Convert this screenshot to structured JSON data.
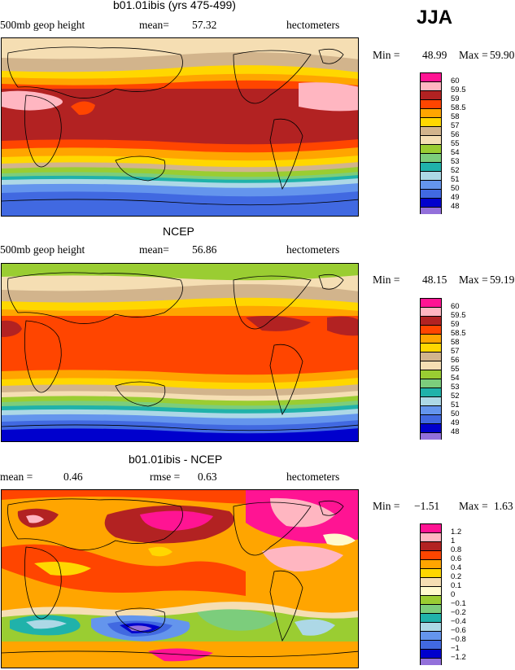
{
  "season": "JJA",
  "panels": [
    {
      "title": "b01.01ibis (yrs 475-499)",
      "left_label": "500mb geop height",
      "stat_label": "mean=",
      "stat_value": "57.32",
      "units": "hectometers",
      "min_label": "Min =",
      "min_value": "48.99",
      "max_label": "Max =",
      "max_value": "59.90",
      "legend": [
        {
          "label": "60",
          "color": "#ff1493"
        },
        {
          "label": "59.5",
          "color": "#ffb6c1"
        },
        {
          "label": "59",
          "color": "#b22222"
        },
        {
          "label": "58.5",
          "color": "#ff4500"
        },
        {
          "label": "58",
          "color": "#ffa500"
        },
        {
          "label": "57",
          "color": "#ffd700"
        },
        {
          "label": "56",
          "color": "#d2b48c"
        },
        {
          "label": "55",
          "color": "#f5deb3"
        },
        {
          "label": "54",
          "color": "#9acd32"
        },
        {
          "label": "53",
          "color": "#7ccd7c"
        },
        {
          "label": "52",
          "color": "#20b2aa"
        },
        {
          "label": "51",
          "color": "#add8e6"
        },
        {
          "label": "50",
          "color": "#6495ed"
        },
        {
          "label": "49",
          "color": "#4169e1"
        },
        {
          "label": "48",
          "color": "#0000cd"
        },
        {
          "label": "",
          "color": "#9370db"
        }
      ]
    },
    {
      "title": "NCEP",
      "left_label": "500mb geop height",
      "stat_label": "mean=",
      "stat_value": "56.86",
      "units": "hectometers",
      "min_label": "Min =",
      "min_value": "48.15",
      "max_label": "Max =",
      "max_value": "59.19",
      "legend": [
        {
          "label": "60",
          "color": "#ff1493"
        },
        {
          "label": "59.5",
          "color": "#ffb6c1"
        },
        {
          "label": "59",
          "color": "#b22222"
        },
        {
          "label": "58.5",
          "color": "#ff4500"
        },
        {
          "label": "58",
          "color": "#ffa500"
        },
        {
          "label": "57",
          "color": "#ffd700"
        },
        {
          "label": "56",
          "color": "#d2b48c"
        },
        {
          "label": "55",
          "color": "#f5deb3"
        },
        {
          "label": "54",
          "color": "#9acd32"
        },
        {
          "label": "53",
          "color": "#7ccd7c"
        },
        {
          "label": "52",
          "color": "#20b2aa"
        },
        {
          "label": "51",
          "color": "#add8e6"
        },
        {
          "label": "50",
          "color": "#6495ed"
        },
        {
          "label": "49",
          "color": "#4169e1"
        },
        {
          "label": "48",
          "color": "#0000cd"
        },
        {
          "label": "",
          "color": "#9370db"
        }
      ]
    },
    {
      "title": "b01.01ibis - NCEP",
      "left_label": "mean =",
      "left_value": "0.46",
      "stat_label": "rmse =",
      "stat_value": "0.63",
      "units": "hectometers",
      "min_label": "Min =",
      "min_value": "−1.51",
      "max_label": "Max =",
      "max_value": "1.63",
      "legend": [
        {
          "label": "1.2",
          "color": "#ff1493"
        },
        {
          "label": "1",
          "color": "#ffb6c1"
        },
        {
          "label": "0.8",
          "color": "#b22222"
        },
        {
          "label": "0.6",
          "color": "#ff4500"
        },
        {
          "label": "0.4",
          "color": "#ffa500"
        },
        {
          "label": "0.2",
          "color": "#ffd700"
        },
        {
          "label": "0.1",
          "color": "#f5deb3"
        },
        {
          "label": "0",
          "color": "#fffacd"
        },
        {
          "label": "−0.1",
          "color": "#9acd32"
        },
        {
          "label": "−0.2",
          "color": "#7ccd7c"
        },
        {
          "label": "−0.4",
          "color": "#20b2aa"
        },
        {
          "label": "−0.6",
          "color": "#add8e6"
        },
        {
          "label": "−0.8",
          "color": "#6495ed"
        },
        {
          "label": "−1",
          "color": "#4169e1"
        },
        {
          "label": "−1.2",
          "color": "#0000cd"
        },
        {
          "label": "",
          "color": "#9370db"
        }
      ]
    }
  ]
}
